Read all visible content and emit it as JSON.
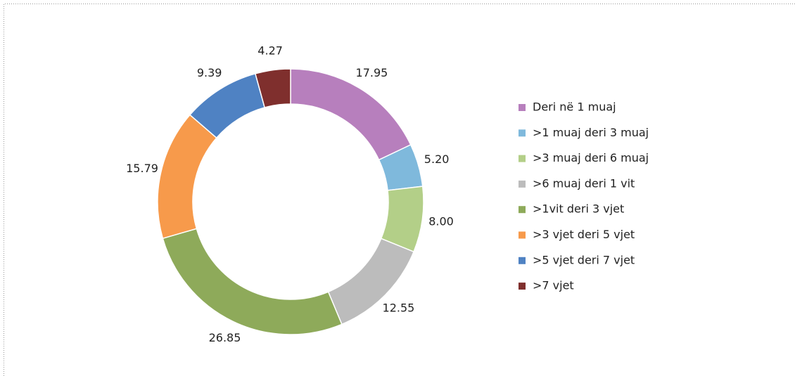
{
  "chart_data": {
    "type": "donut",
    "categories": [
      "Deri në 1 muaj",
      ">1 muaj deri 3 muaj",
      ">3 muaj deri 6 muaj",
      ">6 muaj deri 1 vit",
      ">1vit deri 3 vjet",
      ">3 vjet deri 5 vjet",
      ">5 vjet deri 7 vjet",
      ">7 vjet"
    ],
    "values": [
      17.95,
      5.2,
      8,
      12.55,
      26.85,
      15.79,
      9.39,
      4.27
    ],
    "value_labels": [
      "17.95",
      "5.20",
      "8.00",
      "12.55",
      "26.85",
      "15.79",
      "9.39",
      "4.27"
    ],
    "colors": [
      "#b77fbd",
      "#7fb9dc",
      "#b3cf88",
      "#bcbcbc",
      "#8eaa5a",
      "#f79a4b",
      "#4f82c3",
      "#7f2f2d"
    ],
    "legend": "right"
  }
}
